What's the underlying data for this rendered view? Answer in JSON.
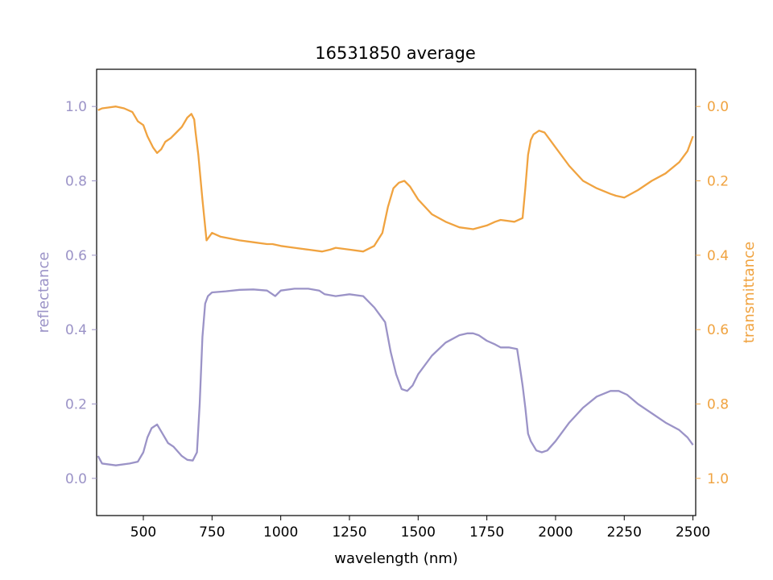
{
  "chart_data": {
    "type": "line",
    "title": "16531850 average",
    "xlabel": "wavelength (nm)",
    "ylabel_left": "reflectance",
    "ylabel_right": "transmittance",
    "xlim": [
      330,
      2510
    ],
    "ylim_left": [
      -0.1,
      1.1
    ],
    "ylim_right": [
      1.1,
      -0.1
    ],
    "right_axis_inverted": true,
    "x_ticks": [
      500,
      750,
      1000,
      1250,
      1500,
      1750,
      2000,
      2250,
      2500
    ],
    "y_ticks_left": [
      0.0,
      0.2,
      0.4,
      0.6,
      0.8,
      1.0
    ],
    "y_ticks_right": [
      0.0,
      0.2,
      0.4,
      0.6,
      0.8,
      1.0
    ],
    "x_tick_labels": [
      "500",
      "750",
      "1000",
      "1250",
      "1500",
      "1750",
      "2000",
      "2250",
      "2500"
    ],
    "y_tick_labels_left": [
      "0.0",
      "0.2",
      "0.4",
      "0.6",
      "0.8",
      "1.0"
    ],
    "y_tick_labels_right": [
      "0.0",
      "0.2",
      "0.4",
      "0.6",
      "0.8",
      "1.0"
    ],
    "grid": false,
    "colors": {
      "reflectance": "#9b93c7",
      "transmittance": "#f0a340"
    },
    "series": [
      {
        "name": "reflectance",
        "axis": "left",
        "x": [
          335,
          350,
          400,
          450,
          480,
          500,
          515,
          530,
          550,
          570,
          590,
          610,
          640,
          660,
          680,
          695,
          705,
          715,
          725,
          735,
          750,
          800,
          850,
          900,
          950,
          980,
          1000,
          1050,
          1100,
          1140,
          1160,
          1200,
          1250,
          1300,
          1340,
          1360,
          1380,
          1400,
          1420,
          1440,
          1460,
          1480,
          1500,
          1550,
          1600,
          1650,
          1680,
          1700,
          1720,
          1750,
          1780,
          1800,
          1830,
          1860,
          1870,
          1880,
          1890,
          1900,
          1910,
          1930,
          1950,
          1970,
          2000,
          2050,
          2100,
          2150,
          2200,
          2230,
          2260,
          2300,
          2350,
          2400,
          2450,
          2480,
          2500
        ],
        "values": [
          0.06,
          0.04,
          0.035,
          0.04,
          0.045,
          0.07,
          0.11,
          0.135,
          0.145,
          0.12,
          0.095,
          0.085,
          0.06,
          0.05,
          0.048,
          0.07,
          0.2,
          0.38,
          0.47,
          0.49,
          0.5,
          0.503,
          0.507,
          0.508,
          0.505,
          0.49,
          0.505,
          0.51,
          0.51,
          0.505,
          0.495,
          0.49,
          0.495,
          0.49,
          0.46,
          0.44,
          0.42,
          0.34,
          0.28,
          0.24,
          0.235,
          0.25,
          0.28,
          0.33,
          0.365,
          0.385,
          0.39,
          0.39,
          0.385,
          0.37,
          0.36,
          0.352,
          0.352,
          0.348,
          0.3,
          0.25,
          0.19,
          0.12,
          0.1,
          0.075,
          0.07,
          0.075,
          0.1,
          0.15,
          0.19,
          0.22,
          0.235,
          0.235,
          0.225,
          0.2,
          0.175,
          0.15,
          0.13,
          0.11,
          0.09
        ]
      },
      {
        "name": "transmittance",
        "axis": "right",
        "x": [
          335,
          350,
          400,
          430,
          460,
          480,
          500,
          515,
          535,
          550,
          565,
          580,
          600,
          620,
          640,
          660,
          675,
          685,
          690,
          700,
          715,
          730,
          750,
          780,
          850,
          900,
          950,
          970,
          1000,
          1050,
          1100,
          1150,
          1180,
          1200,
          1250,
          1300,
          1340,
          1370,
          1390,
          1410,
          1430,
          1450,
          1470,
          1500,
          1550,
          1600,
          1650,
          1700,
          1750,
          1780,
          1800,
          1850,
          1880,
          1890,
          1900,
          1910,
          1920,
          1940,
          1960,
          1980,
          2000,
          2050,
          2100,
          2150,
          2200,
          2220,
          2250,
          2300,
          2350,
          2400,
          2450,
          2480,
          2500
        ],
        "values": [
          0.01,
          0.005,
          0.0,
          0.005,
          0.015,
          0.04,
          0.05,
          0.08,
          0.11,
          0.125,
          0.115,
          0.095,
          0.085,
          0.07,
          0.055,
          0.03,
          0.02,
          0.035,
          0.07,
          0.13,
          0.25,
          0.36,
          0.34,
          0.35,
          0.36,
          0.365,
          0.37,
          0.37,
          0.375,
          0.38,
          0.385,
          0.39,
          0.385,
          0.38,
          0.385,
          0.39,
          0.375,
          0.34,
          0.27,
          0.22,
          0.205,
          0.2,
          0.215,
          0.25,
          0.29,
          0.31,
          0.325,
          0.33,
          0.32,
          0.31,
          0.305,
          0.31,
          0.3,
          0.22,
          0.13,
          0.09,
          0.075,
          0.065,
          0.07,
          0.09,
          0.11,
          0.16,
          0.2,
          0.22,
          0.235,
          0.24,
          0.245,
          0.225,
          0.2,
          0.18,
          0.15,
          0.12,
          0.08
        ]
      }
    ]
  }
}
